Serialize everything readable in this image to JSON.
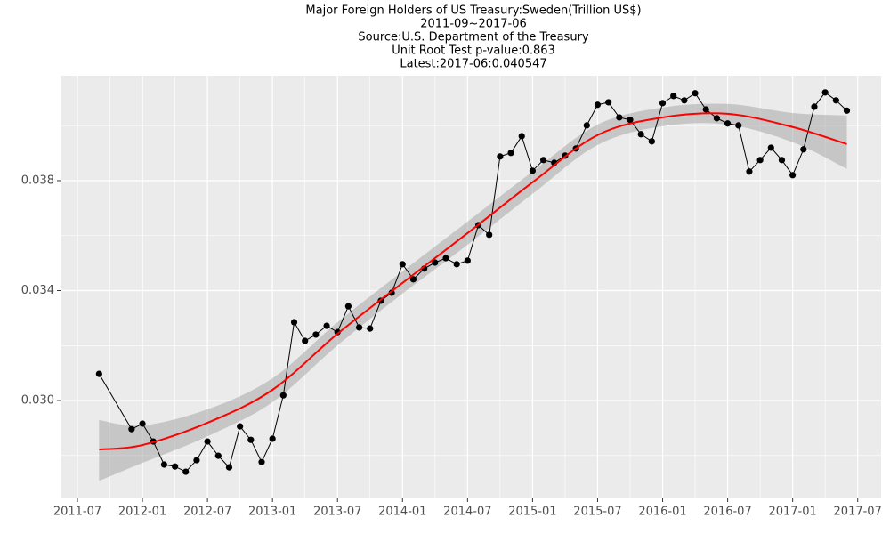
{
  "chart_data": {
    "type": "line",
    "title": "Major Foreign Holders of US Treasury:Sweden(Trillion US$)",
    "subtitles": [
      "2011-09~2017-06",
      "Source:U.S. Department of the Treasury",
      "Unit Root Test p-value:0.863",
      "Latest:2017-06:0.040547"
    ],
    "x": [
      "2011-09",
      "2011-12",
      "2012-01",
      "2012-02",
      "2012-03",
      "2012-04",
      "2012-05",
      "2012-06",
      "2012-07",
      "2012-08",
      "2012-09",
      "2012-10",
      "2012-11",
      "2012-12",
      "2013-01",
      "2013-02",
      "2013-03",
      "2013-04",
      "2013-05",
      "2013-06",
      "2013-07",
      "2013-08",
      "2013-09",
      "2013-10",
      "2013-11",
      "2013-12",
      "2014-01",
      "2014-02",
      "2014-03",
      "2014-04",
      "2014-05",
      "2014-06",
      "2014-07",
      "2014-08",
      "2014-09",
      "2014-10",
      "2014-11",
      "2014-12",
      "2015-01",
      "2015-02",
      "2015-03",
      "2015-04",
      "2015-05",
      "2015-06",
      "2015-07",
      "2015-08",
      "2015-09",
      "2015-10",
      "2015-11",
      "2015-12",
      "2016-01",
      "2016-02",
      "2016-03",
      "2016-04",
      "2016-05",
      "2016-06",
      "2016-07",
      "2016-08",
      "2016-09",
      "2016-10",
      "2016-11",
      "2016-12",
      "2017-01",
      "2017-02",
      "2017-03",
      "2017-04",
      "2017-05",
      "2017-06"
    ],
    "series": [
      {
        "color": "#000000",
        "values": [
          0.03097,
          0.02896,
          0.02916,
          0.02851,
          0.02767,
          0.0276,
          0.02741,
          0.02783,
          0.02851,
          0.02799,
          0.02757,
          0.02906,
          0.02857,
          0.02776,
          0.02861,
          0.03019,
          0.03285,
          0.03217,
          0.0324,
          0.03272,
          0.03249,
          0.03343,
          0.03266,
          0.03262,
          0.03363,
          0.03392,
          0.03496,
          0.03441,
          0.0348,
          0.03502,
          0.03518,
          0.03496,
          0.03509,
          0.03638,
          0.03603,
          0.03888,
          0.03901,
          0.03962,
          0.03836,
          0.03875,
          0.03865,
          0.03891,
          0.03917,
          0.04001,
          0.04076,
          0.04085,
          0.0403,
          0.04021,
          0.03969,
          0.03943,
          0.04082,
          0.04108,
          0.04092,
          0.04118,
          0.04059,
          0.04027,
          0.04008,
          0.04001,
          0.03833,
          0.03875,
          0.0392,
          0.03875,
          0.0382,
          0.03914,
          0.04069,
          0.04121,
          0.04092,
          0.040547
        ]
      }
    ],
    "smooth": {
      "color": "#ff0000",
      "band_color": "#999999",
      "x": [
        "2011-09",
        "2012-01",
        "2012-07",
        "2013-01",
        "2013-07",
        "2014-01",
        "2014-07",
        "2015-01",
        "2015-07",
        "2016-01",
        "2016-07",
        "2017-01",
        "2017-06"
      ],
      "values": [
        0.02822,
        0.02838,
        0.02919,
        0.03039,
        0.03243,
        0.03428,
        0.03609,
        0.03794,
        0.03966,
        0.0403,
        0.04043,
        0.03995,
        0.03933
      ],
      "lower": [
        0.02708,
        0.02773,
        0.0287,
        0.02994,
        0.03201,
        0.03389,
        0.03567,
        0.03752,
        0.0393,
        0.03998,
        0.04004,
        0.0394,
        0.03843
      ],
      "upper": [
        0.02929,
        0.02909,
        0.02968,
        0.03081,
        0.03285,
        0.0347,
        0.03651,
        0.03833,
        0.04004,
        0.04066,
        0.04079,
        0.04046,
        0.04037
      ]
    },
    "xlim": [
      2011.37,
      2017.68
    ],
    "xticks": [
      "2011-07",
      "2012-01",
      "2012-07",
      "2013-01",
      "2013-07",
      "2014-01",
      "2014-07",
      "2015-01",
      "2015-07",
      "2016-01",
      "2016-07",
      "2017-01",
      "2017-07"
    ],
    "minor_xticks": [
      "2011-10",
      "2012-04",
      "2012-10",
      "2013-04",
      "2013-10",
      "2014-04",
      "2014-10",
      "2015-04",
      "2015-10",
      "2016-04",
      "2016-10",
      "2017-04"
    ],
    "ylim": [
      0.02644,
      0.04182
    ],
    "yticks": [
      {
        "value": 0.03,
        "label": "0.030"
      },
      0.034,
      0.038
    ],
    "minor_yticks": [
      0.028,
      0.032,
      0.036,
      0.04
    ],
    "grid": true
  }
}
